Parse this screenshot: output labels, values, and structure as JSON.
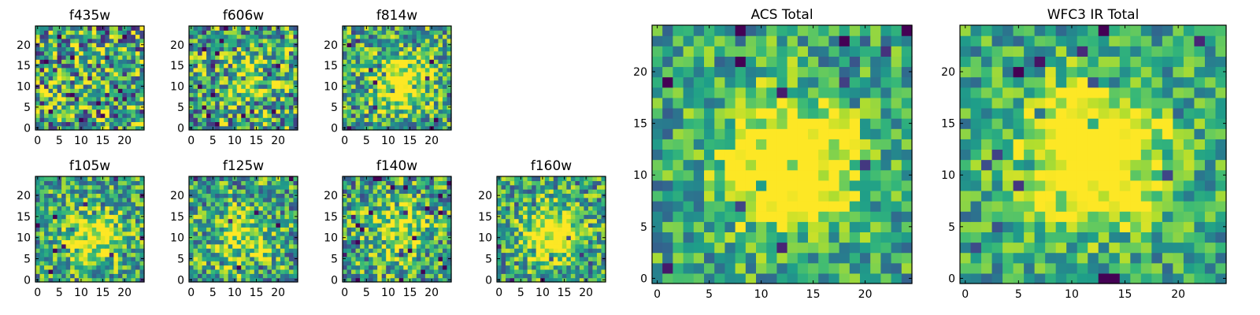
{
  "chart_data": [
    {
      "type": "heatmap",
      "title": "f435w",
      "xticks": [
        "0",
        "5",
        "10",
        "15",
        "20"
      ],
      "yticks": [
        "0",
        "5",
        "10",
        "15",
        "20"
      ],
      "xlim": [
        -0.5,
        24.5
      ],
      "ylim": [
        -0.5,
        24.5
      ],
      "grid_size": 25,
      "colormap": "viridis",
      "peak": null,
      "peak_strength": 0.0,
      "noise": 0.72,
      "seed": 11
    },
    {
      "type": "heatmap",
      "title": "f606w",
      "xticks": [
        "0",
        "5",
        "10",
        "15",
        "20"
      ],
      "yticks": [
        "0",
        "5",
        "10",
        "15",
        "20"
      ],
      "xlim": [
        -0.5,
        24.5
      ],
      "ylim": [
        -0.5,
        24.5
      ],
      "grid_size": 25,
      "colormap": "viridis",
      "peak": [
        13,
        11
      ],
      "peak_strength": 0.25,
      "noise": 0.65,
      "seed": 23
    },
    {
      "type": "heatmap",
      "title": "f814w",
      "xticks": [
        "0",
        "5",
        "10",
        "15",
        "20"
      ],
      "yticks": [
        "0",
        "5",
        "10",
        "15",
        "20"
      ],
      "xlim": [
        -0.5,
        24.5
      ],
      "ylim": [
        -0.5,
        24.5
      ],
      "grid_size": 25,
      "colormap": "viridis",
      "peak": [
        13,
        11
      ],
      "peak_strength": 0.6,
      "noise": 0.55,
      "seed": 37
    },
    {
      "type": "heatmap",
      "title": "f105w",
      "xticks": [
        "0",
        "5",
        "10",
        "15",
        "20"
      ],
      "yticks": [
        "0",
        "5",
        "10",
        "15",
        "20"
      ],
      "xlim": [
        -0.5,
        24.5
      ],
      "ylim": [
        -0.5,
        24.5
      ],
      "grid_size": 25,
      "colormap": "viridis",
      "peak": [
        13,
        10
      ],
      "peak_strength": 0.45,
      "noise": 0.5,
      "seed": 41
    },
    {
      "type": "heatmap",
      "title": "f125w",
      "xticks": [
        "0",
        "5",
        "10",
        "15",
        "20"
      ],
      "yticks": [
        "0",
        "5",
        "10",
        "15",
        "20"
      ],
      "xlim": [
        -0.5,
        24.5
      ],
      "ylim": [
        -0.5,
        24.5
      ],
      "grid_size": 25,
      "colormap": "viridis",
      "peak": [
        12,
        10
      ],
      "peak_strength": 0.35,
      "noise": 0.55,
      "seed": 53
    },
    {
      "type": "heatmap",
      "title": "f140w",
      "xticks": [
        "0",
        "5",
        "10",
        "15",
        "20"
      ],
      "yticks": [
        "0",
        "5",
        "10",
        "15",
        "20"
      ],
      "xlim": [
        -0.5,
        24.5
      ],
      "ylim": [
        -0.5,
        24.5
      ],
      "grid_size": 25,
      "colormap": "viridis",
      "peak": [
        12,
        12
      ],
      "peak_strength": 0.4,
      "noise": 0.55,
      "seed": 67
    },
    {
      "type": "heatmap",
      "title": "f160w",
      "xticks": [
        "0",
        "5",
        "10",
        "15",
        "20"
      ],
      "yticks": [
        "0",
        "5",
        "10",
        "15",
        "20"
      ],
      "xlim": [
        -0.5,
        24.5
      ],
      "ylim": [
        -0.5,
        24.5
      ],
      "grid_size": 25,
      "colormap": "viridis",
      "peak": [
        12,
        11
      ],
      "peak_strength": 0.55,
      "noise": 0.5,
      "seed": 79
    },
    {
      "type": "heatmap",
      "title": "ACS Total",
      "xticks": [
        "0",
        "5",
        "10",
        "15",
        "20"
      ],
      "yticks": [
        "0",
        "5",
        "10",
        "15",
        "20"
      ],
      "xlim": [
        -0.5,
        24.5
      ],
      "ylim": [
        -0.5,
        24.5
      ],
      "grid_size": 25,
      "colormap": "viridis",
      "peak": [
        13,
        11
      ],
      "peak_strength": 0.7,
      "noise": 0.42,
      "seed": 89
    },
    {
      "type": "heatmap",
      "title": "WFC3 IR Total",
      "xticks": [
        "0",
        "5",
        "10",
        "15",
        "20"
      ],
      "yticks": [
        "0",
        "5",
        "10",
        "15",
        "20"
      ],
      "xlim": [
        -0.5,
        24.5
      ],
      "ylim": [
        -0.5,
        24.5
      ],
      "grid_size": 25,
      "colormap": "viridis",
      "peak": [
        12,
        12
      ],
      "peak_strength": 0.75,
      "noise": 0.38,
      "seed": 97
    }
  ],
  "colors": {
    "viridis_low": "#440154",
    "viridis_mid": "#21918c",
    "viridis_high": "#fde725"
  }
}
